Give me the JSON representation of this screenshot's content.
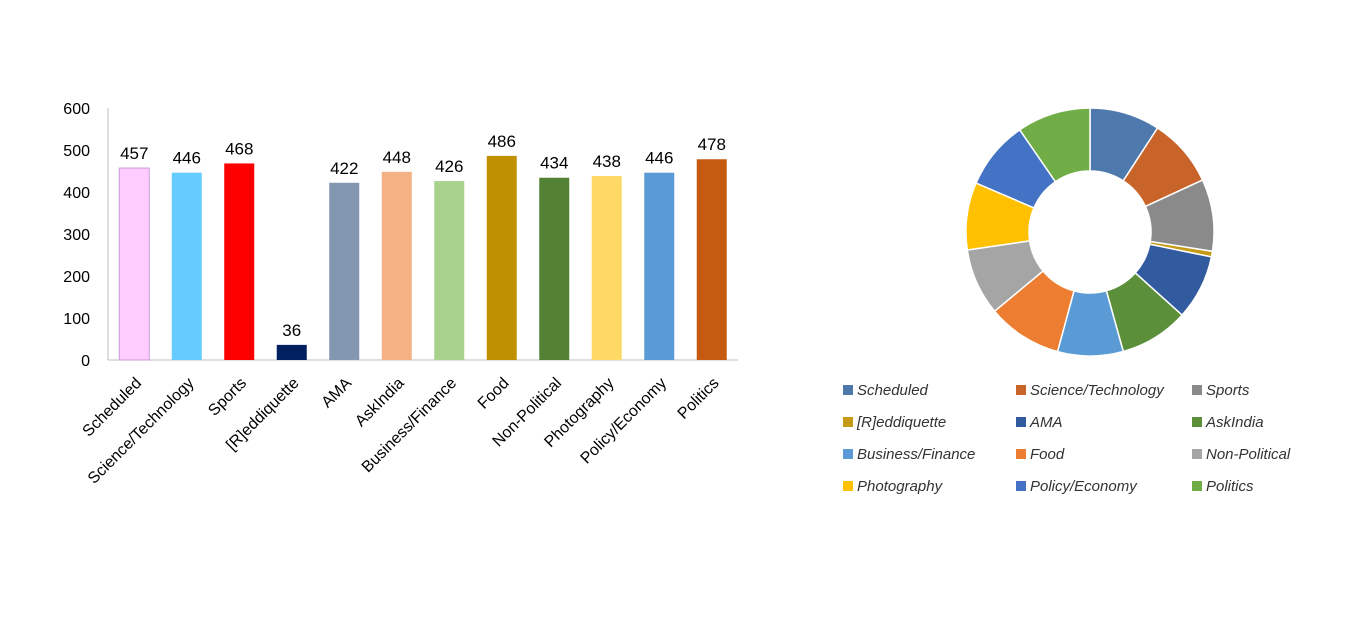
{
  "chart_data": [
    {
      "type": "bar",
      "categories": [
        "Scheduled",
        "Science/Technology",
        "Sports",
        "[R]eddiquette",
        "AMA",
        "AskIndia",
        "Business/Finance",
        "Food",
        "Non-Political",
        "Photography",
        "Policy/Economy",
        "Politics"
      ],
      "values": [
        457,
        446,
        468,
        36,
        422,
        448,
        426,
        486,
        434,
        438,
        446,
        478
      ],
      "colors": [
        "#ffccff",
        "#66ccff",
        "#ff0000",
        "#002060",
        "#8497b0",
        "#f4b183",
        "#a9d18e",
        "#bf9000",
        "#548235",
        "#ffd966",
        "#5b9bd5",
        "#c55a11"
      ],
      "ylim": [
        0,
        600
      ],
      "yticks": [
        0,
        100,
        200,
        300,
        400,
        500,
        600
      ],
      "grid": false,
      "data_labels": true
    },
    {
      "type": "pie",
      "style": "donut",
      "labels": [
        "Scheduled",
        "Science/Technology",
        "Sports",
        "[R]eddiquette",
        "AMA",
        "AskIndia",
        "Business/Finance",
        "Food",
        "Non-Political",
        "Photography",
        "Policy/Economy",
        "Politics"
      ],
      "values": [
        457,
        446,
        468,
        36,
        422,
        448,
        426,
        486,
        434,
        438,
        446,
        478
      ],
      "colors": [
        "#4e79ad",
        "#c8642a",
        "#8a8a8a",
        "#c59a17",
        "#325a9f",
        "#5b8f3a",
        "#5b9bd5",
        "#ed7d31",
        "#a5a5a5",
        "#ffc000",
        "#4472c4",
        "#70ad47"
      ],
      "legend_position": "bottom"
    }
  ]
}
